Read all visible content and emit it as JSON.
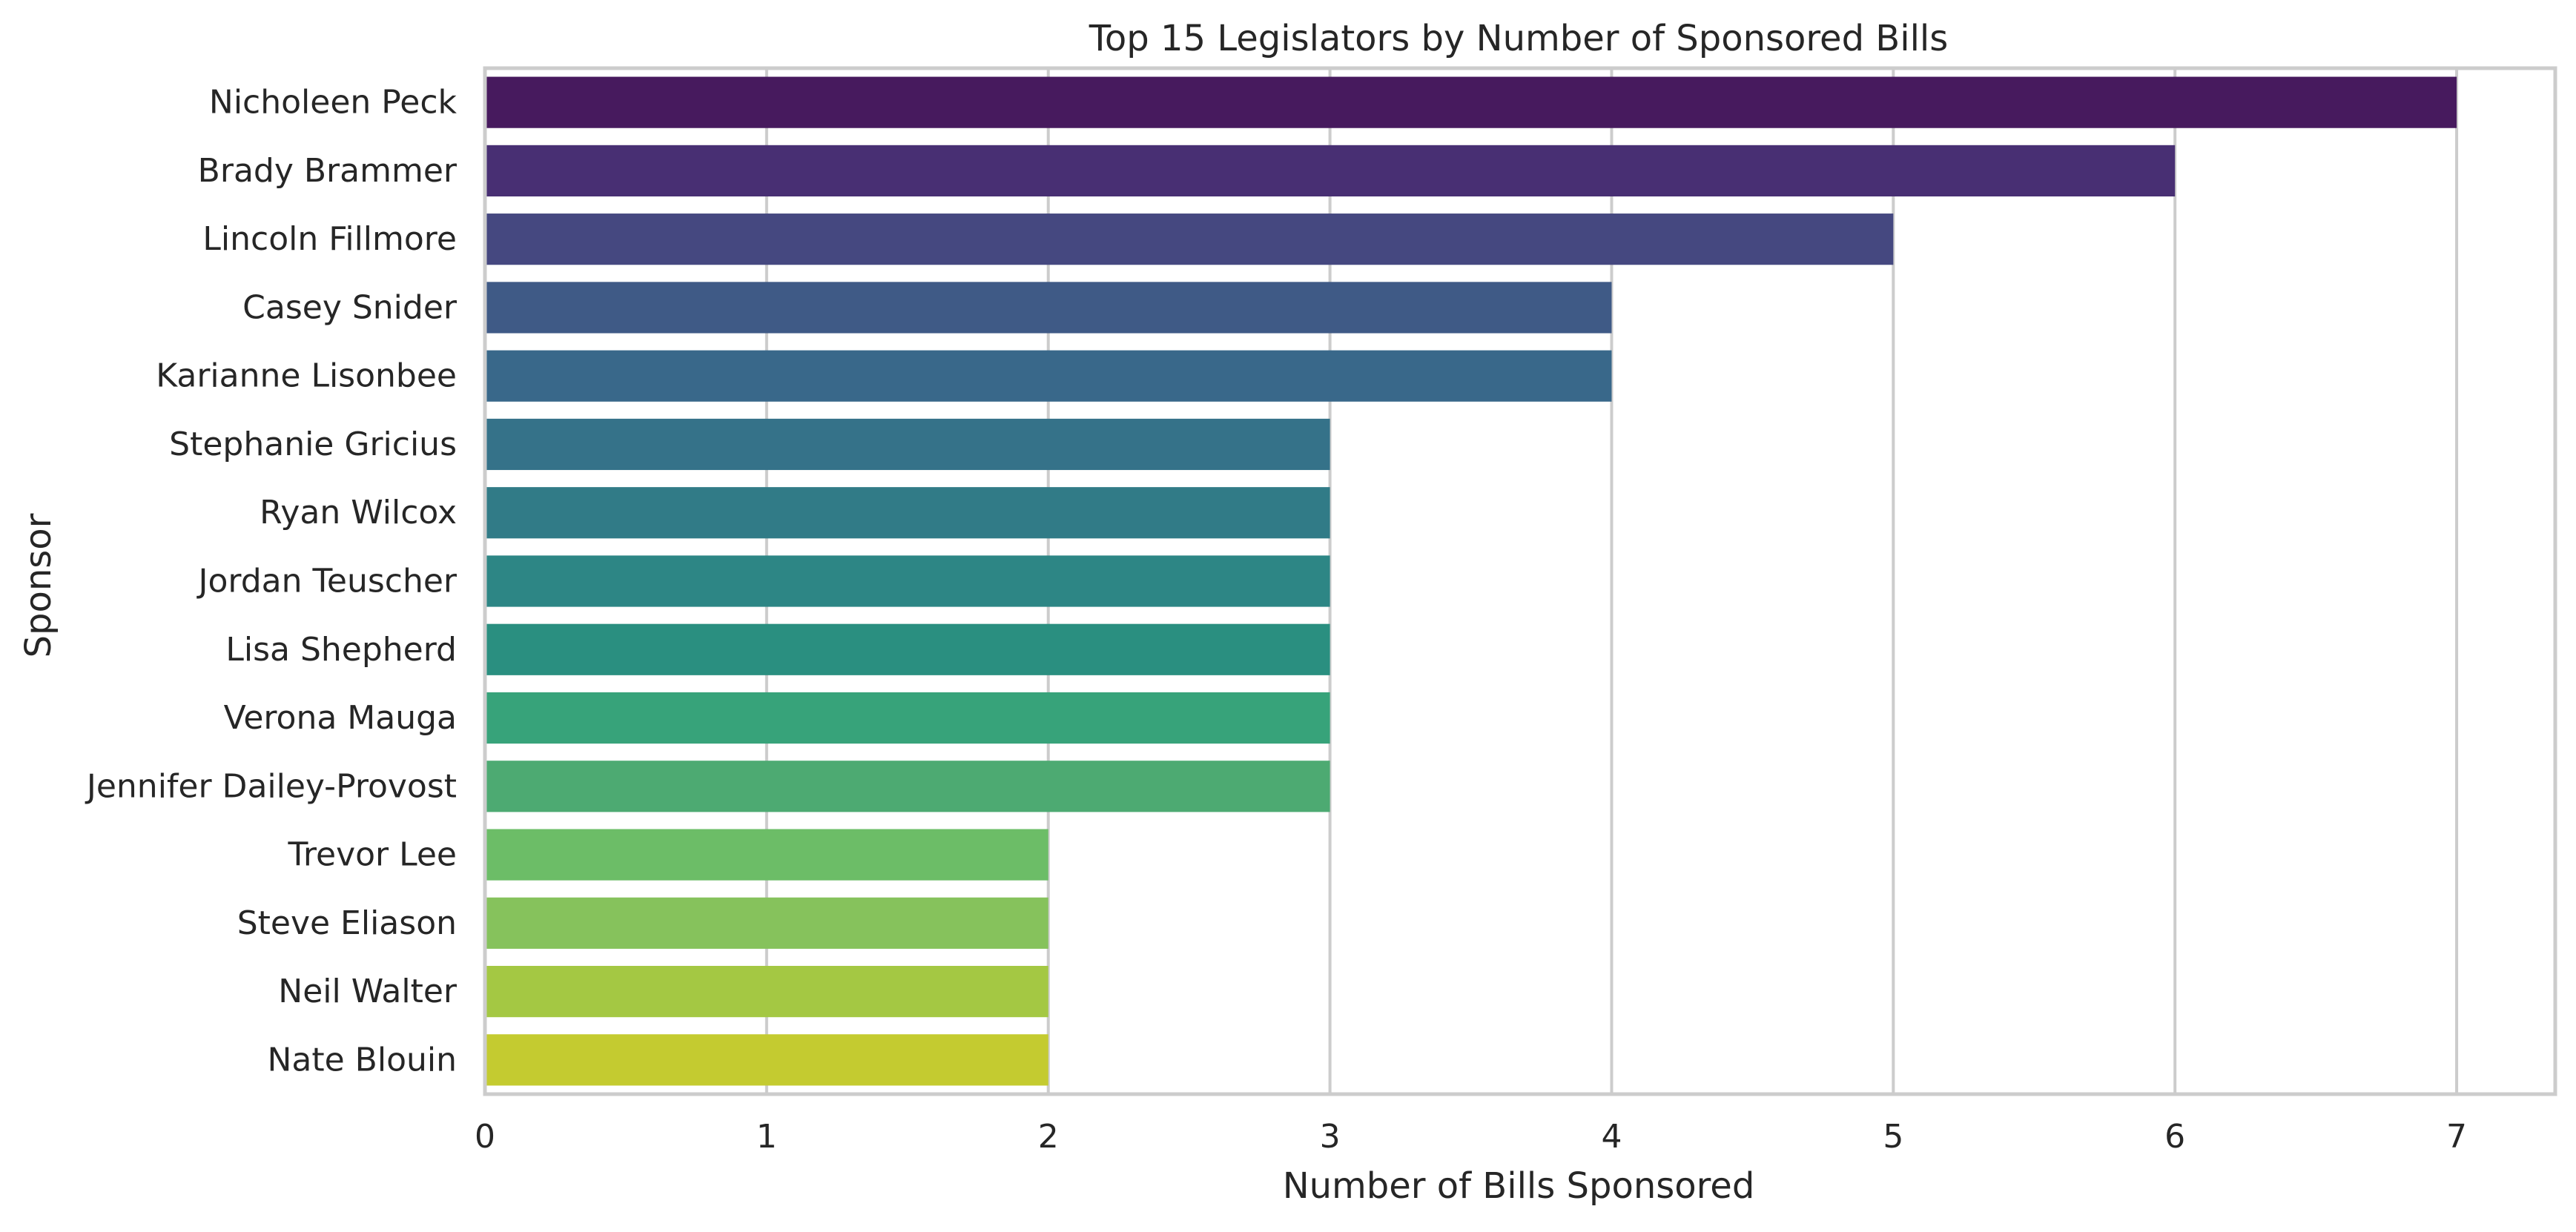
{
  "chart_data": {
    "type": "bar",
    "orientation": "horizontal",
    "title": "Top 15 Legislators by Number of Sponsored Bills",
    "xlabel": "Number of Bills Sponsored",
    "ylabel": "Sponsor",
    "xlim": [
      0,
      7.35
    ],
    "xticks": [
      0,
      1,
      2,
      3,
      4,
      5,
      6,
      7
    ],
    "grid": true,
    "categories": [
      "Nicholeen Peck",
      "Brady Brammer",
      "Lincoln Fillmore",
      "Casey Snider",
      "Karianne Lisonbee",
      "Stephanie Gricius",
      "Ryan Wilcox",
      "Jordan Teuscher",
      "Lisa Shepherd",
      "Verona Mauga",
      "Jennifer Dailey-Provost",
      "Trevor Lee",
      "Steve Eliason",
      "Neil Walter",
      "Nate Blouin"
    ],
    "values": [
      7,
      6,
      5,
      4,
      4,
      3,
      3,
      3,
      3,
      3,
      3,
      2,
      2,
      2,
      2
    ],
    "colors": [
      "#471a5e",
      "#482f73",
      "#454880",
      "#3f5a86",
      "#39688a",
      "#357289",
      "#317b87",
      "#2d8685",
      "#2a8f80",
      "#37a37a",
      "#4daa72",
      "#6cbd67",
      "#86c25c",
      "#a4c843",
      "#c4cb30"
    ]
  }
}
